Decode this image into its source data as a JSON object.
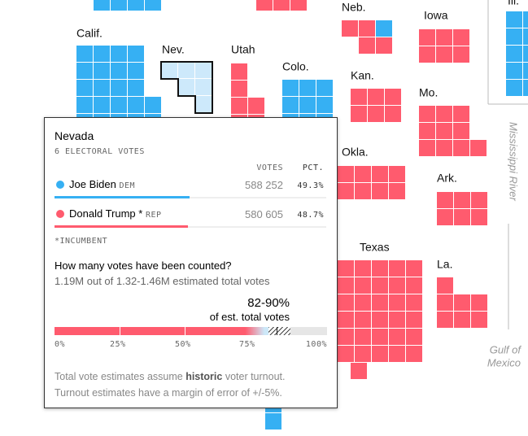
{
  "map": {
    "states": [
      "Calif.",
      "Nev.",
      "Utah",
      "Colo.",
      "Neb.",
      "Iowa",
      "Kan.",
      "Mo.",
      "Okla.",
      "Ark.",
      "Texas",
      "La.",
      "Ill."
    ],
    "river": "Mississippi River",
    "gulf": [
      "Gulf of",
      "Mexico"
    ]
  },
  "tooltip": {
    "title": "Nevada",
    "subtitle": "6 ELECTORAL VOTES",
    "columns": [
      "VOTES",
      "PCT."
    ],
    "rows": [
      {
        "name": "Joe Biden",
        "party": "DEM",
        "votes": "588 252",
        "pct": "49.3%"
      },
      {
        "name": "Donald Trump *",
        "party": "REP",
        "votes": "580 605",
        "pct": "48.7%"
      }
    ],
    "note": "*INCUMBENT",
    "question": "How many votes have been counted?",
    "counted": "1.19M out of 1.32-1.46M estimated total votes",
    "estimate": "82-90%",
    "estimate_label": "of est. total votes",
    "ticks": [
      "0%",
      "25%",
      "50%",
      "75%",
      "100%"
    ],
    "footer": [
      "Total vote estimates assume ",
      "historic",
      " voter turnout.",
      "Turnout estimates have a margin of error of +/-5%."
    ]
  }
}
